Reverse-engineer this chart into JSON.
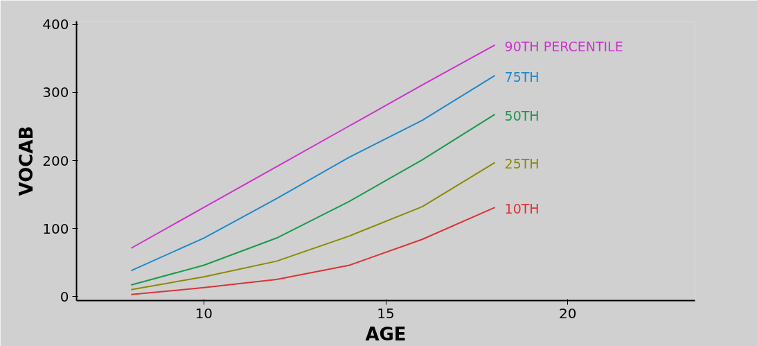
{
  "chart_data": {
    "type": "line",
    "xlabel": "AGE",
    "ylabel": "VOCAB",
    "x": [
      8,
      10,
      12,
      14,
      16,
      18
    ],
    "series": [
      {
        "name": "90TH PERCENTILE",
        "color": "#cc33cc",
        "values": [
          71,
          131,
          191,
          251,
          311,
          370
        ]
      },
      {
        "name": "75TH",
        "color": "#1f88cc",
        "values": [
          38,
          86,
          144,
          205,
          259,
          325
        ]
      },
      {
        "name": "50TH",
        "color": "#1a9a4a",
        "values": [
          17,
          46,
          86,
          140,
          201,
          268
        ]
      },
      {
        "name": "25TH",
        "color": "#8a8a00",
        "values": [
          10,
          29,
          52,
          89,
          132,
          197
        ]
      },
      {
        "name": "10TH",
        "color": "#dd3333",
        "values": [
          3,
          13,
          25,
          46,
          84,
          131
        ]
      }
    ],
    "xlim": [
      6.5,
      23.5
    ],
    "ylim": [
      -6,
      405
    ],
    "xticks": [
      10,
      15,
      20
    ],
    "yticks": [
      0,
      100,
      200,
      300,
      400
    ],
    "grid": false,
    "legend": false,
    "marker": "none",
    "line_style": "solid"
  }
}
